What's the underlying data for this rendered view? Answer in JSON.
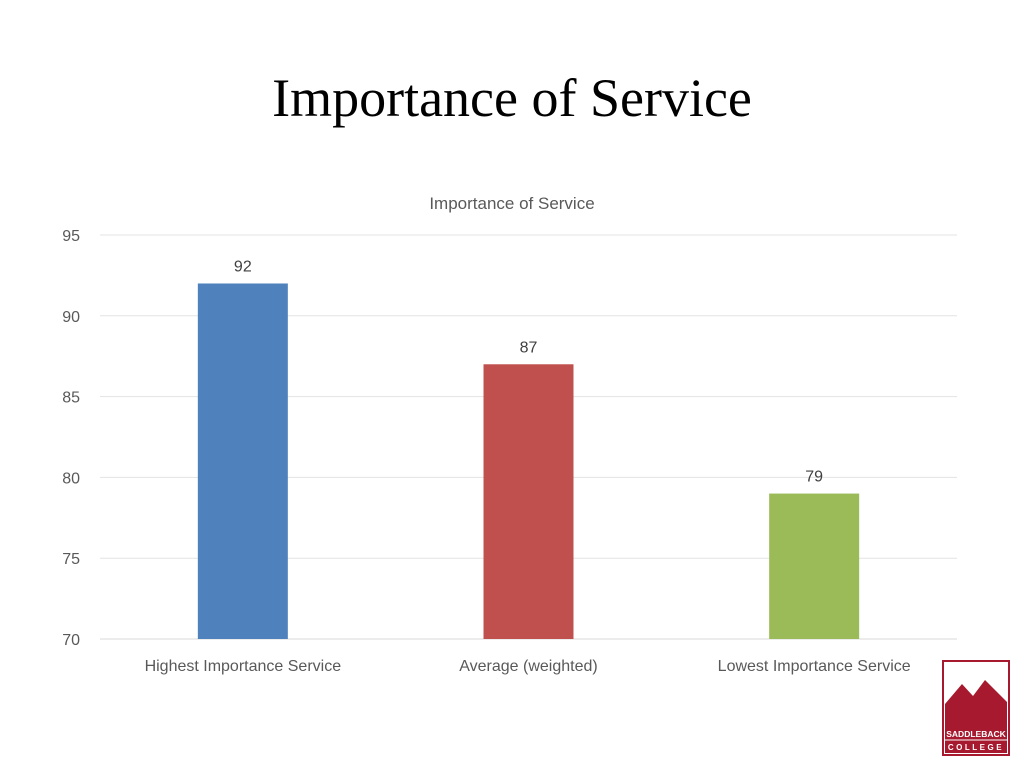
{
  "slide": {
    "title": "Importance of Service"
  },
  "chart_data": {
    "type": "bar",
    "title": "Importance of Service",
    "categories": [
      "Highest Importance Service",
      "Average (weighted)",
      "Lowest Importance Service"
    ],
    "values": [
      92,
      87,
      79
    ],
    "colors": [
      "#4F81BD",
      "#C0504D",
      "#9BBB59"
    ],
    "data_labels": [
      "92",
      "87",
      "79"
    ],
    "xlabel": "",
    "ylabel": "",
    "ylim": [
      70,
      95
    ],
    "yticks": [
      70,
      75,
      80,
      85,
      90,
      95
    ],
    "grid": true,
    "legend": "none"
  },
  "logo": {
    "text_line1": "SADDLEBACK",
    "text_line2": "COLLEGE",
    "color": "#A6192E"
  }
}
